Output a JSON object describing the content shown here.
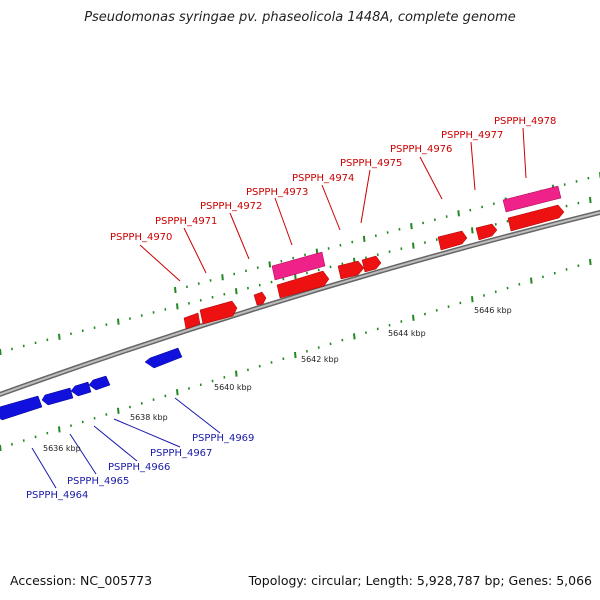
{
  "title": "Pseudomonas syringae pv. phaseolicola 1448A, complete genome",
  "footer": {
    "accession": "Accession: NC_005773",
    "summary": "Topology: circular; Length: 5,928,787 bp; Genes: 5,066"
  },
  "colors": {
    "forward_gene": "#ee1111",
    "forward_gene_alt": "#ee2288",
    "reverse_gene": "#1111dd",
    "backbone": "#999999",
    "tick": "#228822",
    "label_forward": "#cc0000",
    "label_reverse": "#1a1aaa"
  },
  "scale_labels": [
    "5636 kbp",
    "5638 kbp",
    "5640 kbp",
    "5642 kbp",
    "5644 kbp",
    "5646 kbp"
  ],
  "forward_labels": [
    "PSPPH_4970",
    "PSPPH_4971",
    "PSPPH_4972",
    "PSPPH_4973",
    "PSPPH_4974",
    "PSPPH_4975",
    "PSPPH_4976",
    "PSPPH_4977",
    "PSPPH_4978"
  ],
  "reverse_labels": [
    "PSPPH_4964",
    "PSPPH_4965",
    "PSPPH_4966",
    "PSPPH_4967",
    "PSPPH_4969"
  ]
}
